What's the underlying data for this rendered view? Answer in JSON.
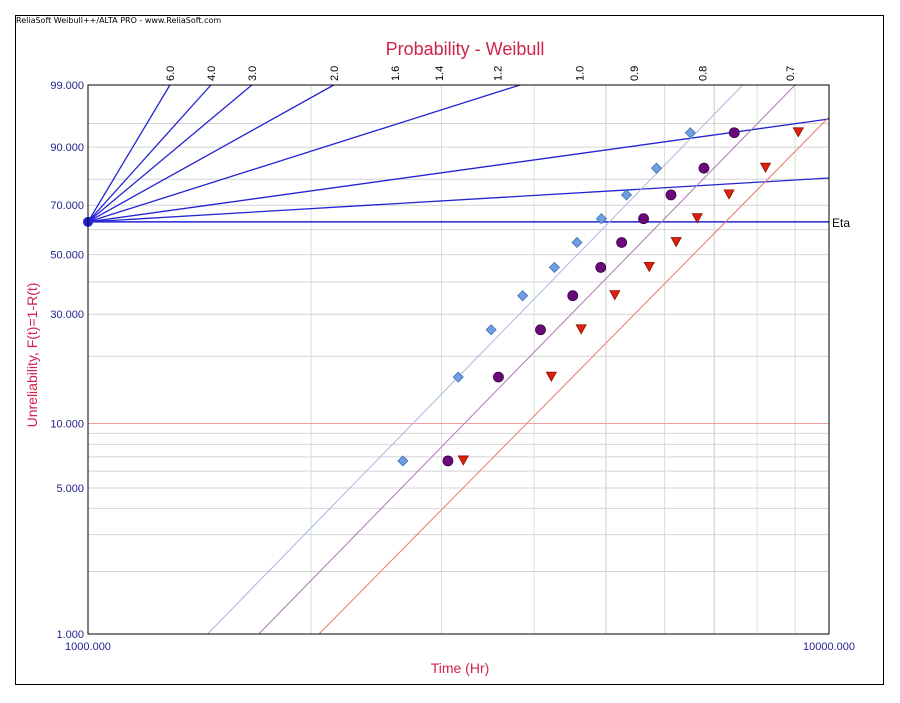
{
  "header": {
    "banner": "ReliaSoft Weibull++/ALTA PRO - www.ReliaSoft.com"
  },
  "colors": {
    "title": "#d0234a",
    "axis_text": "#1f1f8f",
    "beta_lines": "#2323d4",
    "eta_line": "#2323d4",
    "series_a": "#6f9fe0",
    "series_b": "#6a0a7a",
    "series_c": "#e0200f",
    "fit_a": "#a8b8e0",
    "fit_b": "#b07ab6",
    "fit_c": "#e87a6a",
    "grid": "#cfd9cf",
    "grid_vertical": "#cce6cc",
    "ref_10": "#f0a0a0"
  },
  "chart_data": {
    "type": "scatter",
    "title": "Probability - Weibull",
    "xlabel": "Time (Hr)",
    "ylabel": "Unreliability, F(t)=1-R(t)",
    "x_scale": "log",
    "y_scale": "weibull",
    "xlim": [
      1000,
      10000
    ],
    "ylim": [
      1,
      99
    ],
    "x_tick_labels": [
      "1000.000",
      "10000.000"
    ],
    "y_tick_values": [
      1,
      5,
      10,
      30,
      50,
      70,
      90,
      99
    ],
    "y_tick_labels": [
      "1.000",
      "5.000",
      "10.000",
      "30.000",
      "50.000",
      "70.000",
      "90.000",
      "99.000"
    ],
    "beta_labels": [
      "6.0",
      "4.0",
      "3.0",
      "2.0",
      "1.6",
      "1.4",
      "1.2",
      "1.0",
      "0.9",
      "0.8",
      "0.7"
    ],
    "eta_label": "Eta",
    "eta_line_F": 63.2,
    "series": [
      {
        "marker": "diamond",
        "x": [
          2660,
          3160,
          3500,
          3860,
          4260,
          4570,
          4930,
          5330,
          5850,
          6500
        ],
        "y": [
          6.7,
          16.2,
          25.9,
          35.5,
          45.2,
          54.8,
          64.5,
          74.1,
          83.8,
          93.3
        ],
        "fit": [
          [
            1450,
            1
          ],
          [
            7650,
            99
          ]
        ]
      },
      {
        "marker": "circle",
        "x": [
          3060,
          3580,
          4080,
          4510,
          4920,
          5250,
          5620,
          6120,
          6780,
          7450
        ],
        "y": [
          6.7,
          16.2,
          25.9,
          35.5,
          45.2,
          54.8,
          64.5,
          74.1,
          83.8,
          93.3
        ],
        "fit": [
          [
            1700,
            1
          ],
          [
            9000,
            99
          ]
        ]
      },
      {
        "marker": "triangle-down",
        "x": [
          3210,
          4220,
          4630,
          5140,
          5720,
          6220,
          6640,
          7330,
          8210,
          9090
        ],
        "y": [
          6.7,
          16.2,
          25.9,
          35.5,
          45.2,
          54.8,
          64.5,
          74.1,
          83.8,
          93.3
        ],
        "fit": [
          [
            2050,
            1
          ],
          [
            10000,
            96.0
          ]
        ]
      }
    ]
  }
}
